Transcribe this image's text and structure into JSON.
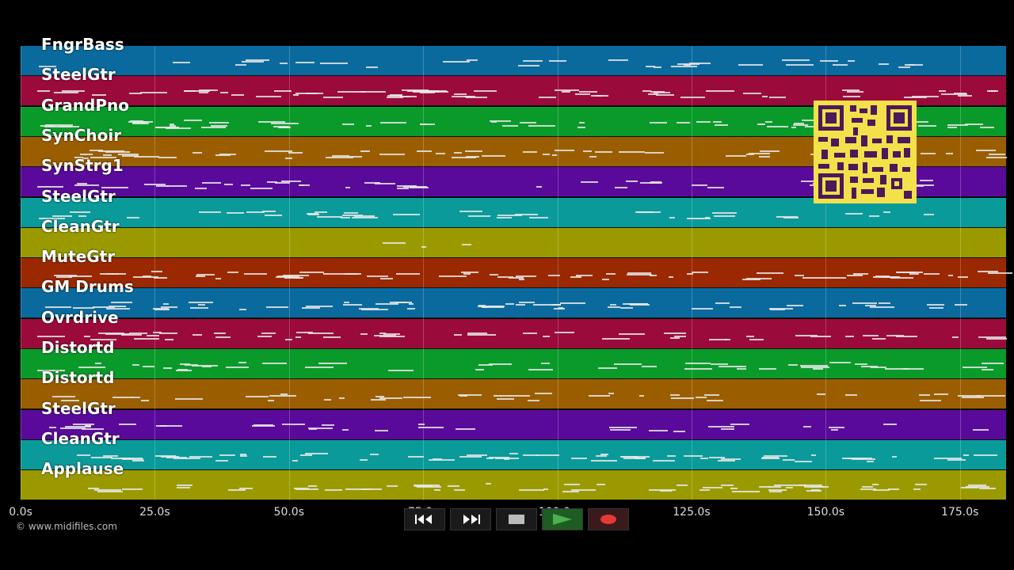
{
  "tracks": [
    {
      "name": "FngrBass",
      "color": "#0a6a9e"
    },
    {
      "name": "SteelGtr",
      "color": "#9a0a3a"
    },
    {
      "name": "GrandPno",
      "color": "#0a9a2a"
    },
    {
      "name": "SynChoir",
      "color": "#9a5e00"
    },
    {
      "name": "SynStrg1",
      "color": "#5a0a9a"
    },
    {
      "name": "SteelGtr",
      "color": "#0a9a9a"
    },
    {
      "name": "CleanGtr",
      "color": "#9a9a00"
    },
    {
      "name": "MuteGtr",
      "color": "#9a2800"
    },
    {
      "name": "GM Drums",
      "color": "#0a6a9e"
    },
    {
      "name": "Ovrdrive",
      "color": "#9a0a3a"
    },
    {
      "name": "Distortd",
      "color": "#0a9a2a"
    },
    {
      "name": "Distortd",
      "color": "#9a5e00"
    },
    {
      "name": "SteelGtr",
      "color": "#5a0a9a"
    },
    {
      "name": "CleanGtr",
      "color": "#0a9a9a"
    },
    {
      "name": "Applause",
      "color": "#9a9a00"
    }
  ],
  "timeline": {
    "ticks": [
      {
        "label": "0.0s",
        "t": 0
      },
      {
        "label": "25.0s",
        "t": 25
      },
      {
        "label": "50.0s",
        "t": 50
      },
      {
        "label": "75.0s",
        "t": 75
      },
      {
        "label": "100.0s",
        "t": 100
      },
      {
        "label": "125.0s",
        "t": 125
      },
      {
        "label": "150.0s",
        "t": 150
      },
      {
        "label": "175.0s",
        "t": 175
      }
    ],
    "duration": 183.6
  },
  "copyright": "© www.midifiles.com",
  "transport": {
    "rewind_icon": "rewind-icon",
    "forward_icon": "fast-forward-icon",
    "stop_icon": "stop-icon",
    "play_icon": "play-icon",
    "record_icon": "record-icon"
  },
  "colors": {
    "play_green": "#4caf50",
    "record_red": "#e53935",
    "qr_yellow": "#f4e04a",
    "qr_dark": "#4a1a5a"
  }
}
